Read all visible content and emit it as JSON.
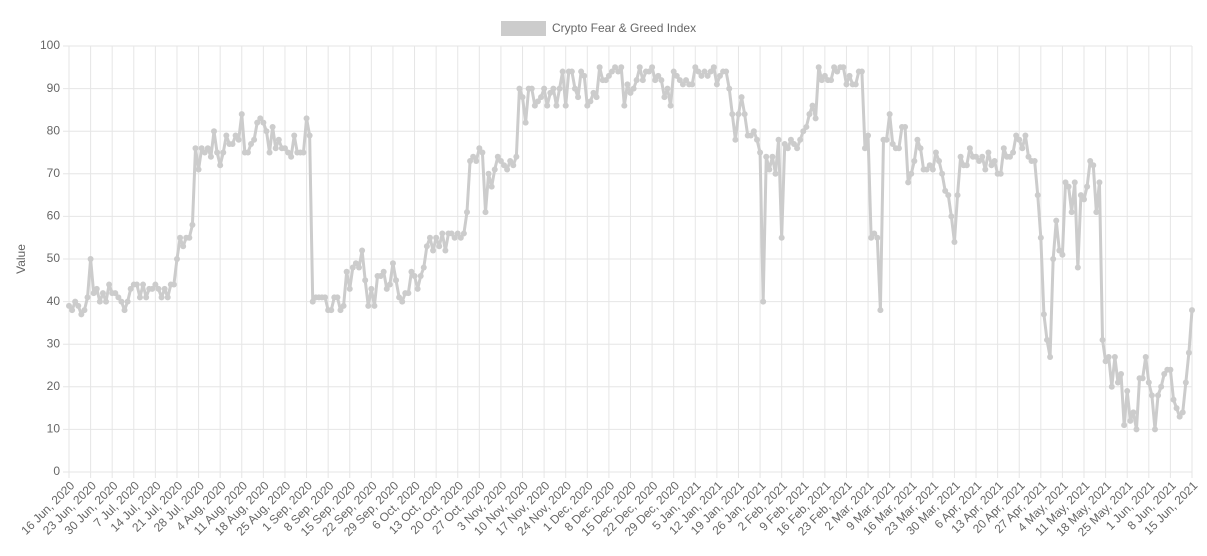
{
  "chart_data": {
    "type": "line",
    "y_label": "Value",
    "ylim": [
      0,
      100
    ],
    "yticks": [
      0,
      10,
      20,
      30,
      40,
      50,
      60,
      70,
      80,
      90,
      100
    ],
    "grid": true,
    "legend": "top",
    "categories": [
      "16 Jun, 2020",
      null,
      null,
      null,
      null,
      null,
      null,
      "23 Jun, 2020",
      null,
      null,
      null,
      null,
      null,
      null,
      "30 Jun, 2020",
      null,
      null,
      null,
      null,
      null,
      null,
      "7 Jul, 2020",
      null,
      null,
      null,
      null,
      null,
      null,
      "14 Jul, 2020",
      null,
      null,
      null,
      null,
      null,
      null,
      "21 Jul, 2020",
      null,
      null,
      null,
      null,
      null,
      null,
      "28 Jul, 2020",
      null,
      null,
      null,
      null,
      null,
      null,
      "4 Aug, 2020",
      null,
      null,
      null,
      null,
      null,
      null,
      "11 Aug, 2020",
      null,
      null,
      null,
      null,
      null,
      null,
      "18 Aug, 2020",
      null,
      null,
      null,
      null,
      null,
      null,
      "25 Aug, 2020",
      null,
      null,
      null,
      null,
      null,
      null,
      "1 Sep, 2020",
      null,
      null,
      null,
      null,
      null,
      null,
      "8 Sep, 2020",
      null,
      null,
      null,
      null,
      null,
      null,
      "15 Sep, 2020",
      null,
      null,
      null,
      null,
      null,
      null,
      "22 Sep, 2020",
      null,
      null,
      null,
      null,
      null,
      null,
      "29 Sep, 2020",
      null,
      null,
      null,
      null,
      null,
      null,
      "6 Oct, 2020",
      null,
      null,
      null,
      null,
      null,
      null,
      "13 Oct, 2020",
      null,
      null,
      null,
      null,
      null,
      null,
      "20 Oct, 2020",
      null,
      null,
      null,
      null,
      null,
      null,
      "27 Oct, 2020",
      null,
      null,
      null,
      null,
      null,
      null,
      "3 Nov, 2020",
      null,
      null,
      null,
      null,
      null,
      null,
      "10 Nov, 2020",
      null,
      null,
      null,
      null,
      null,
      null,
      "17 Nov, 2020",
      null,
      null,
      null,
      null,
      null,
      null,
      "24 Nov, 2020",
      null,
      null,
      null,
      null,
      null,
      null,
      "1 Dec, 2020",
      null,
      null,
      null,
      null,
      null,
      null,
      "8 Dec, 2020",
      null,
      null,
      null,
      null,
      null,
      null,
      "15 Dec, 2020",
      null,
      null,
      null,
      null,
      null,
      null,
      "22 Dec, 2020",
      null,
      null,
      null,
      null,
      null,
      null,
      "29 Dec, 2020",
      null,
      null,
      null,
      null,
      null,
      null,
      "5 Jan, 2021",
      null,
      null,
      null,
      null,
      null,
      null,
      "12 Jan, 2021",
      null,
      null,
      null,
      null,
      null,
      null,
      "19 Jan, 2021",
      null,
      null,
      null,
      null,
      null,
      null,
      "26 Jan, 2021",
      null,
      null,
      null,
      null,
      null,
      null,
      "2 Feb, 2021",
      null,
      null,
      null,
      null,
      null,
      null,
      "9 Feb, 2021",
      null,
      null,
      null,
      null,
      null,
      null,
      "16 Feb, 2021",
      null,
      null,
      null,
      null,
      null,
      null,
      "23 Feb, 2021",
      null,
      null,
      null,
      null,
      null,
      null,
      "2 Mar, 2021",
      null,
      null,
      null,
      null,
      null,
      null,
      "9 Mar, 2021",
      null,
      null,
      null,
      null,
      null,
      null,
      "16 Mar, 2021",
      null,
      null,
      null,
      null,
      null,
      null,
      "23 Mar, 2021",
      null,
      null,
      null,
      null,
      null,
      null,
      "30 Mar, 2021",
      null,
      null,
      null,
      null,
      null,
      null,
      "6 Apr, 2021",
      null,
      null,
      null,
      null,
      null,
      null,
      "13 Apr, 2021",
      null,
      null,
      null,
      null,
      null,
      null,
      "20 Apr, 2021",
      null,
      null,
      null,
      null,
      null,
      null,
      "27 Apr, 2021",
      null,
      null,
      null,
      null,
      null,
      null,
      "4 May, 2021",
      null,
      null,
      null,
      null,
      null,
      null,
      "11 May, 2021",
      null,
      null,
      null,
      null,
      null,
      null,
      "18 May, 2021",
      null,
      null,
      null,
      null,
      null,
      null,
      "25 May, 2021",
      null,
      null,
      null,
      null,
      null,
      null,
      "1 Jun, 2021",
      null,
      null,
      null,
      null,
      null,
      null,
      "8 Jun, 2021",
      null,
      null,
      null,
      null,
      null,
      null,
      "15 Jun, 2021"
    ],
    "series": [
      {
        "name": "Crypto Fear & Greed Index",
        "color": "#cccccc",
        "values": [
          39,
          38,
          40,
          39,
          37,
          38,
          41,
          50,
          42,
          43,
          40,
          42,
          40,
          44,
          42,
          42,
          41,
          40,
          38,
          40,
          43,
          44,
          44,
          41,
          44,
          41,
          43,
          43,
          44,
          43,
          41,
          43,
          41,
          44,
          44,
          50,
          55,
          53,
          55,
          55,
          58,
          76,
          71,
          76,
          75,
          76,
          74,
          80,
          75,
          72,
          75,
          79,
          77,
          77,
          79,
          78,
          84,
          75,
          75,
          77,
          78,
          82,
          83,
          82,
          80,
          75,
          81,
          76,
          78,
          76,
          76,
          75,
          74,
          79,
          75,
          75,
          75,
          83,
          79,
          40,
          41,
          41,
          41,
          41,
          38,
          38,
          41,
          41,
          38,
          39,
          47,
          43,
          48,
          49,
          48,
          52,
          45,
          39,
          43,
          39,
          46,
          46,
          47,
          43,
          44,
          49,
          45,
          41,
          40,
          42,
          42,
          47,
          46,
          43,
          46,
          48,
          53,
          55,
          52,
          55,
          53,
          56,
          52,
          56,
          56,
          55,
          56,
          55,
          56,
          61,
          73,
          74,
          73,
          76,
          75,
          61,
          70,
          67,
          71,
          74,
          73,
          72,
          71,
          73,
          72,
          74,
          90,
          88,
          82,
          90,
          90,
          86,
          87,
          88,
          90,
          86,
          89,
          90,
          86,
          90,
          94,
          86,
          94,
          94,
          90,
          88,
          94,
          93,
          86,
          87,
          89,
          88,
          95,
          92,
          92,
          93,
          94,
          95,
          94,
          95,
          86,
          91,
          89,
          90,
          92,
          95,
          92,
          94,
          94,
          95,
          92,
          93,
          92,
          88,
          90,
          86,
          94,
          93,
          92,
          91,
          92,
          91,
          91,
          95,
          94,
          93,
          94,
          93,
          94,
          95,
          91,
          93,
          94,
          94,
          90,
          84,
          78,
          84,
          88,
          84,
          79,
          79,
          80,
          78,
          75,
          40,
          74,
          71,
          74,
          70,
          78,
          55,
          77,
          76,
          78,
          77,
          76,
          78,
          80,
          81,
          84,
          86,
          83,
          95,
          92,
          93,
          92,
          92,
          95,
          94,
          95,
          95,
          91,
          93,
          91,
          91,
          94,
          94,
          76,
          79,
          55,
          56,
          55,
          38,
          78,
          78,
          84,
          77,
          76,
          76,
          81,
          81,
          68,
          70,
          73,
          78,
          76,
          71,
          71,
          72,
          71,
          75,
          73,
          70,
          66,
          65,
          60,
          54,
          65,
          74,
          72,
          72,
          76,
          74,
          74,
          73,
          74,
          71,
          75,
          72,
          73,
          70,
          70,
          76,
          74,
          74,
          75,
          79,
          78,
          76,
          79,
          74,
          73,
          73,
          65,
          55,
          37,
          31,
          27,
          50,
          59,
          52,
          51,
          68,
          67,
          61,
          68,
          48,
          65,
          64,
          67,
          73,
          72,
          61,
          68,
          31,
          26,
          27,
          20,
          27,
          21,
          23,
          11,
          19,
          12,
          14,
          10,
          22,
          22,
          27,
          21,
          18,
          10,
          18,
          20,
          23,
          24,
          24,
          17,
          15,
          13,
          14,
          21,
          28,
          38
        ]
      }
    ]
  }
}
